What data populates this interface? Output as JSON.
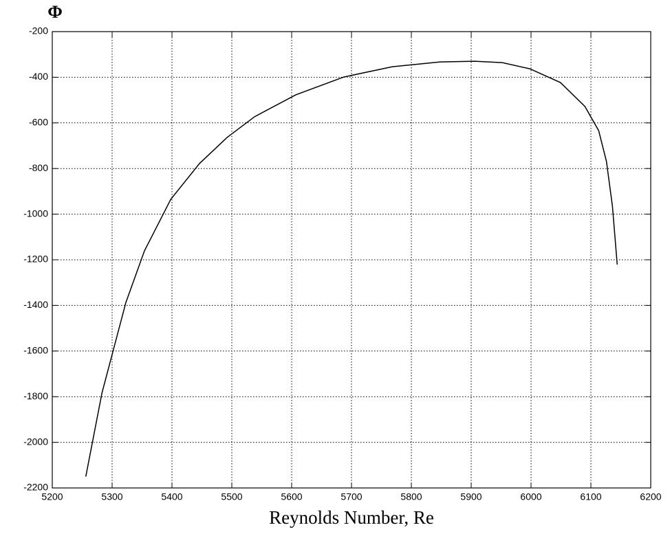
{
  "chart_data": {
    "type": "line",
    "ylabel": "Φ",
    "xlabel": "Reynolds Number, Re",
    "x": [
      5256,
      5283,
      5323,
      5354,
      5398,
      5446,
      5492,
      5538,
      5607,
      5687,
      5768,
      5848,
      5906,
      5952,
      5998,
      6049,
      6090,
      6113,
      6126,
      6136,
      6144
    ],
    "series": [
      {
        "color": "#000000",
        "values": [
          -2150,
          -1784,
          -1387,
          -1161,
          -935,
          -778,
          -664,
          -573,
          -477,
          -399,
          -354,
          -333,
          -330,
          -336,
          -363,
          -423,
          -528,
          -634,
          -769,
          -965,
          -1221
        ]
      }
    ],
    "xlim": [
      5200,
      6200
    ],
    "xticks": [
      5200,
      5300,
      5400,
      5500,
      5600,
      5700,
      5800,
      5900,
      6000,
      6100,
      6200
    ],
    "ylim": [
      -2200,
      -200
    ],
    "yticks": [
      -2200,
      -2000,
      -1800,
      -1600,
      -1400,
      -1200,
      -1000,
      -800,
      -600,
      -400,
      -200
    ],
    "grid": true
  }
}
